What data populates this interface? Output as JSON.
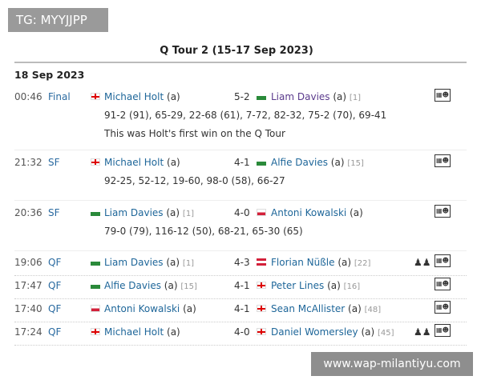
{
  "watermarks": {
    "top": "TG: MYYJJPP",
    "bottom": "www.wap-milantiyu.com"
  },
  "title": "Q Tour 2 (15-17 Sep 2023)",
  "date": "18 Sep 2023",
  "matches": [
    {
      "time": "00:46",
      "round": "Final",
      "p1": "Michael Holt",
      "p1_tag": "(a)",
      "p1_seed": "",
      "p1_flag": "england",
      "score": "5-2",
      "p2": "Liam Davies",
      "p2_tag": "(a)",
      "p2_seed": "[1]",
      "p2_flag": "wales",
      "frames": "91-2 (91), 65-29, 22-68 (61), 7-72, 82-32, 75-2 (70), 69-41",
      "note": "This was Holt's first win on the Q Tour",
      "podium": false
    },
    {
      "time": "21:32",
      "round": "SF",
      "p1": "Michael Holt",
      "p1_tag": "(a)",
      "p1_seed": "",
      "p1_flag": "england",
      "score": "4-1",
      "p2": "Alfie Davies",
      "p2_tag": "(a)",
      "p2_seed": "[15]",
      "p2_flag": "wales",
      "frames": "92-25, 52-12, 19-60, 98-0 (58), 66-27",
      "podium": false
    },
    {
      "time": "20:36",
      "round": "SF",
      "p1": "Liam Davies",
      "p1_tag": "(a)",
      "p1_seed": "[1]",
      "p1_flag": "wales",
      "score": "4-0",
      "p2": "Antoni Kowalski",
      "p2_tag": "(a)",
      "p2_seed": "",
      "p2_flag": "poland",
      "frames": "79-0 (79), 116-12 (50), 68-21, 65-30 (65)",
      "podium": false
    },
    {
      "time": "19:06",
      "round": "QF",
      "p1": "Liam Davies",
      "p1_tag": "(a)",
      "p1_seed": "[1]",
      "p1_flag": "wales",
      "score": "4-3",
      "p2": "Florian Nüßle",
      "p2_tag": "(a)",
      "p2_seed": "[22]",
      "p2_flag": "austria",
      "podium": true
    },
    {
      "time": "17:47",
      "round": "QF",
      "p1": "Alfie Davies",
      "p1_tag": "(a)",
      "p1_seed": "[15]",
      "p1_flag": "wales",
      "score": "4-1",
      "p2": "Peter Lines",
      "p2_tag": "(a)",
      "p2_seed": "[16]",
      "p2_flag": "england",
      "podium": false
    },
    {
      "time": "17:40",
      "round": "QF",
      "p1": "Antoni Kowalski",
      "p1_tag": "(a)",
      "p1_seed": "",
      "p1_flag": "poland",
      "score": "4-1",
      "p2": "Sean McAllister",
      "p2_tag": "(a)",
      "p2_seed": "[48]",
      "p2_flag": "england",
      "podium": false
    },
    {
      "time": "17:24",
      "round": "QF",
      "p1": "Michael Holt",
      "p1_tag": "(a)",
      "p1_seed": "",
      "p1_flag": "england",
      "score": "4-0",
      "p2": "Daniel Womersley",
      "p2_tag": "(a)",
      "p2_seed": "[45]",
      "p2_flag": "england",
      "podium": true
    }
  ]
}
